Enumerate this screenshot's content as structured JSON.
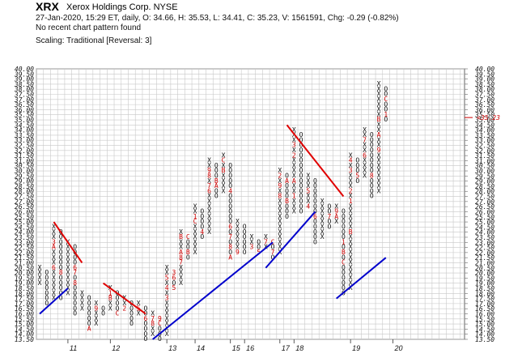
{
  "header": {
    "ticker": "XRX",
    "company": "Xerox Holdings Corp.  NYSE",
    "quote_line": "27-Jan-2020, 15:29 ET, daily, O: 34.66, H: 35.53, L: 34.41, C: 35.23, V: 1561591, Chg: -0.29 (-0.82%)",
    "pattern_line": "No recent chart pattern found",
    "scaling_line": "Scaling: Traditional [Reversal: 3]"
  },
  "chart_data": {
    "type": "point-and-figure",
    "box_size": 0.5,
    "reversal": 3,
    "ylim": [
      13.5,
      40.0
    ],
    "y_ticks": [
      "13.50",
      "14.00",
      "14.50",
      "15.00",
      "15.50",
      "16.00",
      "16.50",
      "17.00",
      "17.50",
      "18.00",
      "18.50",
      "19.00",
      "19.50",
      "20.00",
      "20.50",
      "21.00",
      "21.50",
      "22.00",
      "22.50",
      "23.00",
      "23.50",
      "24.00",
      "24.50",
      "25.00",
      "25.50",
      "26.00",
      "26.50",
      "27.00",
      "27.50",
      "28.00",
      "28.50",
      "29.00",
      "29.50",
      "30.00",
      "30.50",
      "31.00",
      "31.50",
      "32.00",
      "32.50",
      "33.00",
      "33.50",
      "34.00",
      "34.50",
      "35.00",
      "35.50",
      "36.00",
      "36.50",
      "37.00",
      "37.50",
      "38.00",
      "38.50",
      "39.00",
      "39.50",
      "40.00"
    ],
    "x_labels": [
      {
        "label": "11",
        "col": 4
      },
      {
        "label": "12",
        "col": 10
      },
      {
        "label": "13",
        "col": 18
      },
      {
        "label": "14",
        "col": 22
      },
      {
        "label": "15",
        "col": 27
      },
      {
        "label": "16",
        "col": 29
      },
      {
        "label": "17",
        "col": 34
      },
      {
        "label": "18",
        "col": 36
      },
      {
        "label": "19",
        "col": 44
      },
      {
        "label": "20",
        "col": 50
      }
    ],
    "columns": [
      {
        "t": "X",
        "lo": 19.0,
        "hi": 20.5
      },
      {
        "t": "O",
        "lo": 17.0,
        "hi": 20.0
      },
      {
        "t": "X",
        "lo": 17.5,
        "hi": 24.5,
        "labels": {
          "20.5": "6",
          "22.5": "A",
          "23.0": "3"
        }
      },
      {
        "t": "O",
        "lo": 17.5,
        "hi": 24.0,
        "labels": {
          "20.0": "8"
        }
      },
      {
        "t": "X",
        "lo": 18.0,
        "hi": 23.0
      },
      {
        "t": "O",
        "lo": 16.0,
        "hi": 22.5,
        "labels": {
          "20.5": "6",
          "20.0": "7",
          "19.0": "8"
        }
      },
      {
        "t": "X",
        "lo": 16.5,
        "hi": 18.0
      },
      {
        "t": "O",
        "lo": 14.5,
        "hi": 17.5,
        "labels": {
          "14.5": "A"
        }
      },
      {
        "t": "X",
        "lo": 15.0,
        "hi": 17.0,
        "labels": {
          "16.5": "9"
        }
      },
      {
        "t": "O",
        "lo": 16.0,
        "hi": 16.5
      },
      {
        "t": "X",
        "lo": 16.5,
        "hi": 18.5,
        "labels": {
          "17.5": "B",
          "18.0": "1"
        }
      },
      {
        "t": "O",
        "lo": 16.0,
        "hi": 18.0,
        "labels": {
          "16.0": "C"
        }
      },
      {
        "t": "X",
        "lo": 16.5,
        "hi": 17.5,
        "labels": {
          "16.5": "2"
        }
      },
      {
        "t": "O",
        "lo": 15.0,
        "hi": 17.0
      },
      {
        "t": "X",
        "lo": 16.0,
        "hi": 17.0,
        "labels": {
          "16.5": "5"
        }
      },
      {
        "t": "O",
        "lo": 13.5,
        "hi": 16.5,
        "labels": {
          "15.5": "6"
        }
      },
      {
        "t": "X",
        "lo": 14.0,
        "hi": 16.0,
        "labels": {
          "15.5": "7",
          "15.0": "8"
        }
      },
      {
        "t": "O",
        "lo": 13.5,
        "hi": 15.5,
        "labels": {
          "15.5": "9",
          "15.0": "C"
        }
      },
      {
        "t": "X",
        "lo": 14.0,
        "hi": 20.5,
        "labels": {
          "17.5": "3",
          "18.5": "4",
          "19.5": "5"
        }
      },
      {
        "t": "O",
        "lo": 18.5,
        "hi": 20.0,
        "labels": {
          "19.5": "6",
          "20.0": "3",
          "18.5": "5"
        }
      },
      {
        "t": "X",
        "lo": 19.0,
        "hi": 24.0,
        "labels": {
          "21.0": "7",
          "21.5": "8",
          "22.0": "A",
          "23.5": "B"
        }
      },
      {
        "t": "O",
        "lo": 21.5,
        "hi": 23.5,
        "labels": {
          "22.0": "B",
          "23.5": "C"
        }
      },
      {
        "t": "X",
        "lo": 22.0,
        "hi": 26.5,
        "labels": {
          "25.5": "1",
          "25.0": "C"
        }
      },
      {
        "t": "O",
        "lo": 23.5,
        "hi": 26.0,
        "labels": {
          "24.0": "4"
        }
      },
      {
        "t": "X",
        "lo": 24.0,
        "hi": 31.0,
        "labels": {
          "28.0": "6",
          "28.5": "7",
          "29.5": "8",
          "30.0": "9"
        }
      },
      {
        "t": "O",
        "lo": 27.5,
        "hi": 30.5,
        "labels": {
          "28.5": "A",
          "29.0": "B",
          "31.5": "C"
        }
      },
      {
        "t": "X",
        "lo": 28.0,
        "hi": 31.5,
        "labels": {
          "31.0": "C",
          "30.0": "B"
        }
      },
      {
        "t": "O",
        "lo": 21.5,
        "hi": 30.5,
        "labels": {
          "28.0": "4",
          "21.5": "A",
          "22.5": "8",
          "23.5": "7",
          "24.5": "6"
        }
      },
      {
        "t": "X",
        "lo": 22.0,
        "hi": 25.0,
        "labels": {
          "22.0": "9"
        }
      },
      {
        "t": "O",
        "lo": 22.0,
        "hi": 24.5
      },
      {
        "t": "X",
        "lo": 22.5,
        "hi": 23.5,
        "labels": {
          "22.5": "3"
        }
      },
      {
        "t": "O",
        "lo": 22.0,
        "hi": 23.0,
        "labels": {
          "24.0": "4",
          "22.0": "5"
        }
      },
      {
        "t": "X",
        "lo": 22.5,
        "hi": 23.5,
        "labels": {
          "23.0": "7"
        }
      },
      {
        "t": "O",
        "lo": 21.5,
        "hi": 23.0,
        "labels": {
          "22.0": "7",
          "23.0": "C"
        }
      },
      {
        "t": "X",
        "lo": 22.0,
        "hi": 30.0,
        "labels": {
          "27.5": "8",
          "28.5": "9",
          "29.5": "2"
        }
      },
      {
        "t": "O",
        "lo": 25.5,
        "hi": 29.5,
        "labels": {
          "27.0": "B",
          "29.0": "A"
        }
      },
      {
        "t": "X",
        "lo": 26.0,
        "hi": 34.0,
        "labels": {
          "27.5": "1",
          "29.0": "A",
          "31.5": "2",
          "32.5": "3"
        }
      },
      {
        "t": "O",
        "lo": 26.0,
        "hi": 33.5
      },
      {
        "t": "X",
        "lo": 26.5,
        "hi": 29.5,
        "labels": {
          "28.0": "5",
          "26.5": "4"
        }
      },
      {
        "t": "O",
        "lo": 23.0,
        "hi": 29.0,
        "labels": {
          "25.5": "6"
        }
      },
      {
        "t": "X",
        "lo": 23.5,
        "hi": 27.0
      },
      {
        "t": "O",
        "lo": 24.5,
        "hi": 26.5,
        "labels": {
          "25.5": "7"
        }
      },
      {
        "t": "X",
        "lo": 25.0,
        "hi": 26.5,
        "labels": {
          "25.5": "A",
          "26.0": "9"
        }
      },
      {
        "t": "O",
        "lo": 18.0,
        "hi": 26.0,
        "labels": {
          "21.0": "C",
          "22.0": "B",
          "23.0": "1"
        }
      },
      {
        "t": "X",
        "lo": 18.5,
        "hi": 31.5,
        "labels": {
          "23.0": "X",
          "24.0": "B",
          "27.0": "1",
          "28.0": "2",
          "30.0": "3",
          "31.0": "4"
        }
      },
      {
        "t": "O",
        "lo": 29.0,
        "hi": 31.0,
        "labels": {
          "29.5": "5"
        }
      },
      {
        "t": "X",
        "lo": 29.5,
        "hi": 34.0,
        "labels": {
          "31.5": "6",
          "33.0": "7"
        }
      },
      {
        "t": "O",
        "lo": 27.5,
        "hi": 33.5,
        "labels": {
          "29.5": "8"
        }
      },
      {
        "t": "X",
        "lo": 28.0,
        "hi": 38.5,
        "labels": {
          "32.0": "9",
          "33.5": "A",
          "35.0": "B"
        }
      },
      {
        "t": "O",
        "lo": 35.0,
        "hi": 38.0,
        "labels": {
          "37.0": "C",
          "35.5": "1"
        }
      }
    ],
    "trendlines": [
      {
        "color": "#e00000",
        "from": [
          2,
          25.0
        ],
        "to": [
          6,
          21.0
        ]
      },
      {
        "color": "#e00000",
        "from": [
          9,
          19.0
        ],
        "to": [
          15,
          16.0
        ]
      },
      {
        "color": "#e00000",
        "from": [
          35,
          34.5
        ],
        "to": [
          43,
          27.5
        ]
      },
      {
        "color": "#0000cc",
        "from": [
          0,
          16.0
        ],
        "to": [
          4,
          18.5
        ]
      },
      {
        "color": "#0000cc",
        "from": [
          16,
          13.5
        ],
        "to": [
          33,
          23.0
        ]
      },
      {
        "color": "#0000cc",
        "from": [
          32,
          20.5
        ],
        "to": [
          39,
          26.0
        ]
      },
      {
        "color": "#0000cc",
        "from": [
          42,
          17.5
        ],
        "to": [
          49,
          21.5
        ]
      }
    ],
    "last_price": {
      "value": 35.23,
      "label": "<35.23",
      "color": "#cc0000"
    },
    "red_tick": "35.00",
    "grid": true
  }
}
